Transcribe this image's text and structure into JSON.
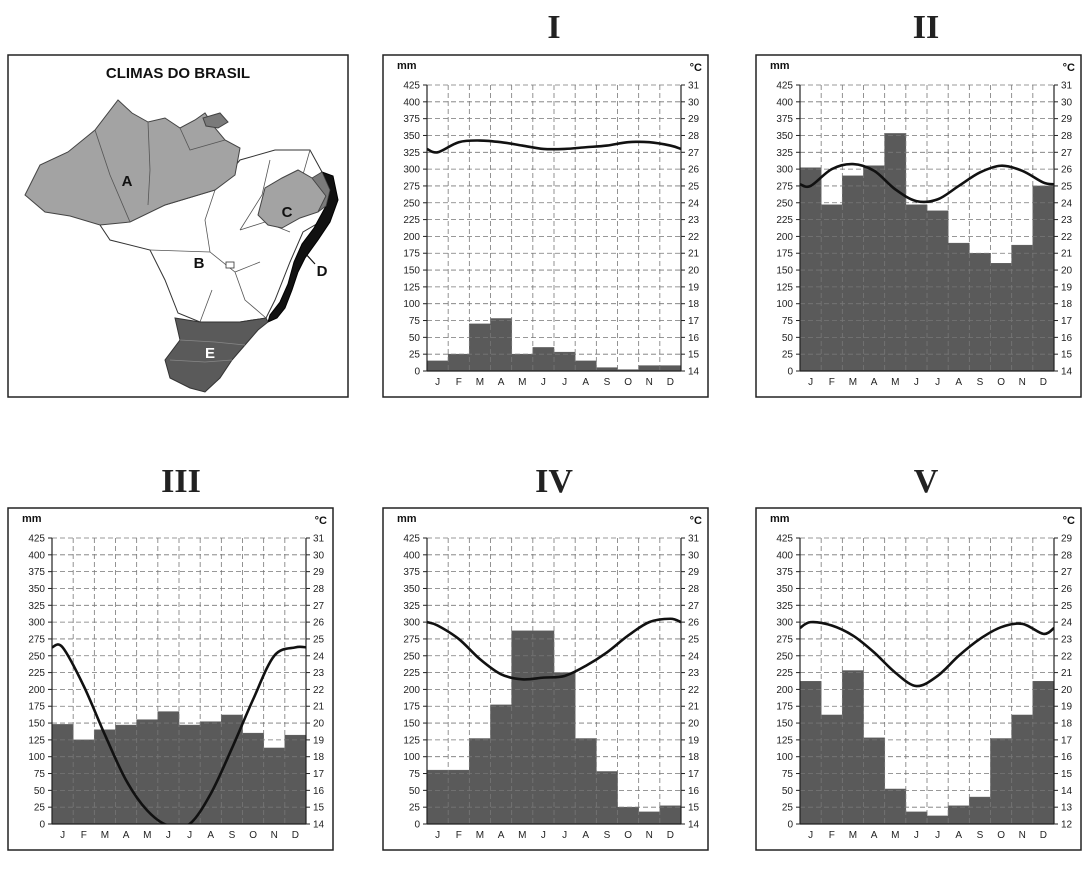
{
  "map": {
    "title": "CLIMAS DO BRASIL",
    "regions": [
      {
        "label": "A",
        "color": "#a3a3a3"
      },
      {
        "label": "B",
        "color": "#ffffff"
      },
      {
        "label": "C",
        "color": "#a3a3a3"
      },
      {
        "label": "D",
        "color": "#111111"
      },
      {
        "label": "E",
        "color": "#5a5a5a"
      }
    ]
  },
  "chart_data": [
    {
      "type": "bar+line",
      "title": "I",
      "y_left_unit": "mm",
      "y_right_unit": "°C",
      "categories": [
        "J",
        "F",
        "M",
        "A",
        "M",
        "J",
        "J",
        "A",
        "S",
        "O",
        "N",
        "D"
      ],
      "ylim_left": [
        0,
        425
      ],
      "ylim_right": [
        14,
        31
      ],
      "left_ticks": [
        0,
        25,
        50,
        75,
        100,
        125,
        150,
        175,
        200,
        225,
        250,
        275,
        300,
        325,
        350,
        375,
        400,
        425
      ],
      "right_ticks": [
        14,
        15,
        16,
        17,
        18,
        19,
        20,
        21,
        22,
        23,
        24,
        25,
        26,
        27,
        28,
        29,
        30,
        31
      ],
      "precipitation": [
        15,
        25,
        70,
        78,
        25,
        35,
        28,
        15,
        5,
        2,
        8,
        8
      ],
      "temperature": [
        27.0,
        27.6,
        27.7,
        27.6,
        27.4,
        27.2,
        27.2,
        27.3,
        27.4,
        27.6,
        27.6,
        27.4
      ]
    },
    {
      "type": "bar+line",
      "title": "II",
      "y_left_unit": "mm",
      "y_right_unit": "°C",
      "categories": [
        "J",
        "F",
        "M",
        "A",
        "M",
        "J",
        "J",
        "A",
        "S",
        "O",
        "N",
        "D"
      ],
      "ylim_left": [
        0,
        425
      ],
      "ylim_right": [
        14,
        31
      ],
      "left_ticks": [
        0,
        25,
        50,
        75,
        100,
        125,
        150,
        175,
        200,
        225,
        250,
        275,
        300,
        325,
        350,
        375,
        400,
        425
      ],
      "right_ticks": [
        14,
        15,
        16,
        17,
        18,
        19,
        20,
        21,
        22,
        23,
        24,
        25,
        26,
        27,
        28,
        29,
        30,
        31
      ],
      "precipitation": [
        302,
        247,
        290,
        305,
        353,
        247,
        238,
        190,
        175,
        160,
        187,
        275
      ],
      "temperature": [
        25.0,
        26.0,
        26.3,
        25.9,
        24.8,
        24.1,
        24.2,
        25.0,
        25.8,
        26.2,
        25.9,
        25.2
      ]
    },
    {
      "type": "bar+line",
      "title": "III",
      "y_left_unit": "mm",
      "y_right_unit": "°C",
      "categories": [
        "J",
        "F",
        "M",
        "A",
        "M",
        "J",
        "J",
        "A",
        "S",
        "O",
        "N",
        "D"
      ],
      "ylim_left": [
        0,
        425
      ],
      "ylim_right": [
        14,
        31
      ],
      "left_ticks": [
        0,
        25,
        50,
        75,
        100,
        125,
        150,
        175,
        200,
        225,
        250,
        275,
        300,
        325,
        350,
        375,
        400,
        425
      ],
      "right_ticks": [
        14,
        15,
        16,
        17,
        18,
        19,
        20,
        21,
        22,
        23,
        24,
        25,
        26,
        27,
        28,
        29,
        30,
        31
      ],
      "precipitation": [
        148,
        125,
        140,
        147,
        155,
        167,
        147,
        152,
        162,
        135,
        113,
        132
      ],
      "temperature": [
        24.5,
        22.2,
        19.3,
        16.6,
        14.8,
        13.9,
        14.0,
        15.8,
        18.5,
        21.4,
        24.0,
        24.5
      ]
    },
    {
      "type": "bar+line",
      "title": "IV",
      "y_left_unit": "mm",
      "y_right_unit": "°C",
      "categories": [
        "J",
        "F",
        "M",
        "A",
        "M",
        "J",
        "J",
        "A",
        "S",
        "O",
        "N",
        "D"
      ],
      "ylim_left": [
        0,
        425
      ],
      "ylim_right": [
        14,
        31
      ],
      "left_ticks": [
        0,
        25,
        50,
        75,
        100,
        125,
        150,
        175,
        200,
        225,
        250,
        275,
        300,
        325,
        350,
        375,
        400,
        425
      ],
      "right_ticks": [
        14,
        15,
        16,
        17,
        18,
        19,
        20,
        21,
        22,
        23,
        24,
        25,
        26,
        27,
        28,
        29,
        30,
        31
      ],
      "precipitation": [
        80,
        80,
        127,
        177,
        287,
        287,
        225,
        127,
        78,
        25,
        18,
        27
      ],
      "temperature": [
        25.8,
        25.0,
        23.8,
        22.9,
        22.6,
        22.7,
        22.8,
        23.4,
        24.2,
        25.2,
        26.0,
        26.2
      ]
    },
    {
      "type": "bar+line",
      "title": "V",
      "y_left_unit": "mm",
      "y_right_unit": "°C",
      "categories": [
        "J",
        "F",
        "M",
        "A",
        "M",
        "J",
        "J",
        "A",
        "S",
        "O",
        "N",
        "D"
      ],
      "ylim_left": [
        0,
        425
      ],
      "ylim_right": [
        12,
        29
      ],
      "left_ticks": [
        0,
        25,
        50,
        75,
        100,
        125,
        150,
        175,
        200,
        225,
        250,
        275,
        300,
        325,
        350,
        375,
        400,
        425
      ],
      "right_ticks": [
        12,
        13,
        14,
        15,
        16,
        17,
        18,
        19,
        20,
        21,
        22,
        23,
        24,
        25,
        26,
        27,
        28,
        29
      ],
      "precipitation": [
        212,
        162,
        228,
        128,
        52,
        18,
        12,
        27,
        40,
        127,
        162,
        212
      ],
      "temperature": [
        24.0,
        23.8,
        23.2,
        22.2,
        21.0,
        20.2,
        20.8,
        22.0,
        23.0,
        23.7,
        23.9,
        23.3
      ]
    }
  ]
}
